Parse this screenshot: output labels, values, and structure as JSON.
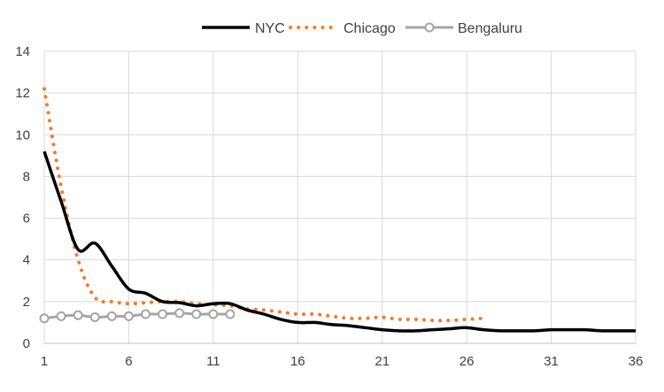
{
  "chart_data": {
    "type": "line",
    "title": "",
    "xlabel": "",
    "ylabel": "",
    "xlim": [
      1,
      36
    ],
    "ylim": [
      0,
      14
    ],
    "x_ticks": [
      1,
      6,
      11,
      16,
      21,
      26,
      31,
      36
    ],
    "y_ticks": [
      0,
      2,
      4,
      6,
      8,
      10,
      12,
      14
    ],
    "grid": true,
    "legend": "top",
    "series": [
      {
        "name": "NYC",
        "color": "#000000",
        "style": "solid",
        "x": [
          1,
          2,
          3,
          4,
          5,
          6,
          7,
          8,
          9,
          10,
          11,
          12,
          13,
          14,
          15,
          16,
          17,
          18,
          19,
          20,
          21,
          22,
          23,
          24,
          25,
          26,
          27,
          28,
          29,
          30,
          31,
          32,
          33,
          34,
          35,
          36
        ],
        "values": [
          9.2,
          6.8,
          4.5,
          4.8,
          3.7,
          2.6,
          2.4,
          2.0,
          1.95,
          1.8,
          1.9,
          1.9,
          1.6,
          1.4,
          1.15,
          1.0,
          1.0,
          0.9,
          0.85,
          0.75,
          0.65,
          0.6,
          0.6,
          0.65,
          0.7,
          0.75,
          0.65,
          0.6,
          0.6,
          0.6,
          0.65,
          0.65,
          0.65,
          0.6,
          0.6,
          0.6
        ]
      },
      {
        "name": "Chicago",
        "color": "#ED7D31",
        "style": "dotted",
        "x": [
          1,
          2,
          3,
          4,
          5,
          6,
          7,
          8,
          9,
          10,
          11,
          12,
          13,
          14,
          15,
          16,
          17,
          18,
          19,
          20,
          21,
          22,
          23,
          24,
          25,
          26,
          27
        ],
        "values": [
          12.2,
          7.5,
          4.0,
          2.2,
          2.0,
          1.9,
          1.95,
          2.0,
          2.0,
          1.9,
          1.85,
          1.8,
          1.65,
          1.6,
          1.5,
          1.4,
          1.4,
          1.3,
          1.2,
          1.2,
          1.25,
          1.15,
          1.15,
          1.1,
          1.1,
          1.15,
          1.2
        ]
      },
      {
        "name": "Bengaluru",
        "color": "#A5A5A5",
        "style": "solid-circle-markers",
        "x": [
          1,
          2,
          3,
          4,
          5,
          6,
          7,
          8,
          9,
          10,
          11,
          12
        ],
        "values": [
          1.2,
          1.3,
          1.35,
          1.25,
          1.3,
          1.3,
          1.4,
          1.4,
          1.45,
          1.4,
          1.4,
          1.4
        ]
      }
    ]
  }
}
